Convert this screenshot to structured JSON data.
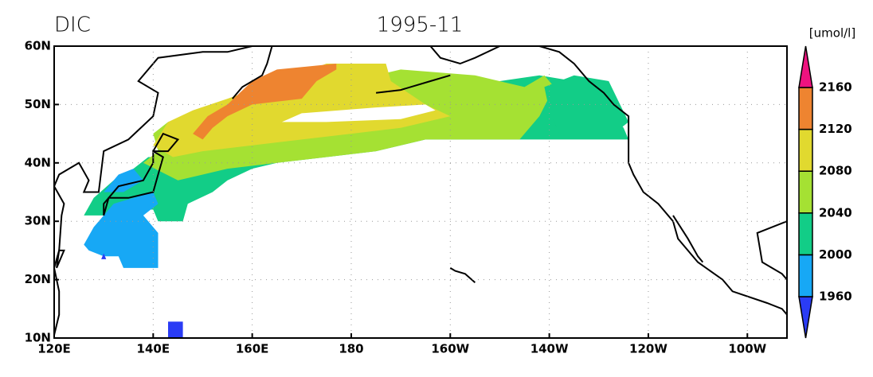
{
  "chart_data": {
    "type": "map",
    "title": "DIC",
    "subtitle": "1995-11",
    "units": "[umol/l]",
    "xlim": [
      120,
      268
    ],
    "ylim": [
      10,
      60
    ],
    "xticks": [
      {
        "value": 120,
        "label": "120E"
      },
      {
        "value": 140,
        "label": "140E"
      },
      {
        "value": 160,
        "label": "160E"
      },
      180,
      {
        "value": 200,
        "label": "160W"
      },
      {
        "value": 220,
        "label": "140W"
      },
      {
        "value": 240,
        "label": "120W"
      },
      {
        "value": 260,
        "label": "100W"
      }
    ],
    "yticks": [
      {
        "value": 10,
        "label": "10N"
      },
      {
        "value": 20,
        "label": "20N"
      },
      {
        "value": 30,
        "label": "30N"
      },
      {
        "value": 40,
        "label": "40N"
      },
      {
        "value": 50,
        "label": "50N"
      },
      {
        "value": 60,
        "label": "60N"
      }
    ],
    "grid": true,
    "colorbar": {
      "levels": [
        1960,
        2000,
        2040,
        2080,
        2120,
        2160
      ],
      "colors": [
        "#2a3cf5",
        "#17a8f5",
        "#12cd87",
        "#a5e133",
        "#e1d92f",
        "#ee8430",
        "#ee137f"
      ]
    }
  }
}
